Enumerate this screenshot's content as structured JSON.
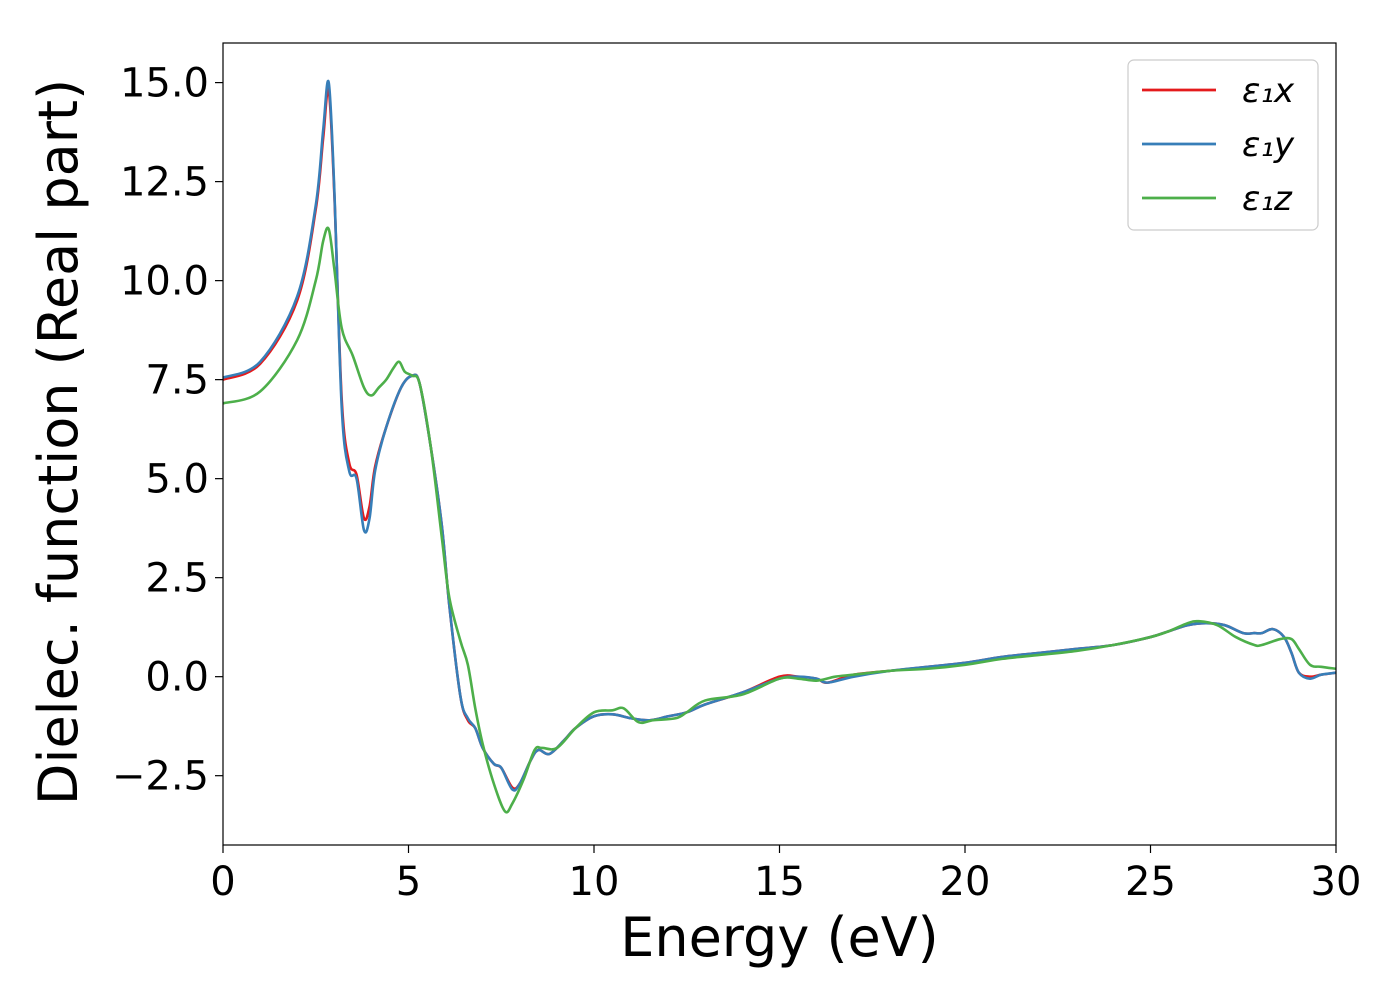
{
  "chart_data": {
    "type": "line",
    "title": "",
    "xlabel": "Energy (eV)",
    "ylabel": "Dielec. function (Real part)",
    "xlim": [
      0,
      30
    ],
    "ylim": [
      -4.25,
      16
    ],
    "xticks": [
      0,
      5,
      10,
      15,
      20,
      25,
      30
    ],
    "xtick_labels": [
      "0",
      "5",
      "10",
      "15",
      "20",
      "25",
      "30"
    ],
    "yticks": [
      -2.5,
      0.0,
      2.5,
      5.0,
      7.5,
      10.0,
      12.5,
      15.0
    ],
    "ytick_labels": [
      "−2.5",
      "0.0",
      "2.5",
      "5.0",
      "7.5",
      "10.0",
      "12.5",
      "15.0"
    ],
    "grid": false,
    "legend_position": "top-right",
    "series": [
      {
        "name": "ε₁x",
        "color": "#e41a1c",
        "x": [
          0,
          1,
          2,
          2.5,
          2.7,
          2.85,
          3.0,
          3.2,
          3.4,
          3.6,
          3.8,
          3.95,
          4.1,
          4.4,
          4.8,
          5.1,
          5.3,
          5.6,
          5.9,
          6.1,
          6.4,
          6.6,
          6.8,
          7.0,
          7.3,
          7.5,
          7.8,
          8.0,
          8.3,
          8.5,
          8.8,
          9.2,
          9.5,
          10.0,
          10.5,
          11.0,
          11.5,
          12.0,
          12.5,
          13.0,
          14.0,
          15.0,
          15.5,
          16.0,
          16.3,
          17.0,
          18.0,
          19.0,
          20.0,
          21.0,
          22.0,
          23.0,
          24.0,
          25.0,
          25.5,
          26.0,
          26.5,
          27.0,
          27.5,
          27.8,
          28.0,
          28.3,
          28.6,
          28.8,
          29.0,
          29.3,
          29.6,
          30.0
        ],
        "y": [
          7.5,
          7.9,
          9.5,
          11.8,
          13.6,
          14.8,
          12.2,
          7.0,
          5.4,
          5.1,
          4.0,
          4.3,
          5.3,
          6.3,
          7.3,
          7.6,
          7.4,
          5.8,
          3.8,
          1.8,
          -0.5,
          -1.1,
          -1.3,
          -1.8,
          -2.2,
          -2.3,
          -2.8,
          -2.7,
          -2.1,
          -1.85,
          -1.95,
          -1.6,
          -1.3,
          -1.0,
          -0.95,
          -1.05,
          -1.1,
          -1.0,
          -0.9,
          -0.7,
          -0.4,
          0.0,
          0.0,
          -0.05,
          -0.15,
          0.05,
          0.15,
          0.25,
          0.35,
          0.5,
          0.6,
          0.7,
          0.8,
          1.0,
          1.15,
          1.3,
          1.35,
          1.3,
          1.1,
          1.1,
          1.1,
          1.2,
          1.0,
          0.6,
          0.1,
          0.0,
          0.05,
          0.1
        ]
      },
      {
        "name": "ε₁y",
        "color": "#377eb8",
        "x": [
          0,
          1,
          2,
          2.5,
          2.7,
          2.85,
          3.0,
          3.2,
          3.4,
          3.6,
          3.8,
          3.95,
          4.1,
          4.4,
          4.8,
          5.1,
          5.3,
          5.6,
          5.9,
          6.1,
          6.4,
          6.6,
          6.8,
          7.0,
          7.3,
          7.5,
          7.8,
          8.0,
          8.3,
          8.5,
          8.8,
          9.2,
          9.5,
          10.0,
          10.5,
          11.0,
          11.5,
          12.0,
          12.5,
          13.0,
          14.0,
          15.0,
          15.5,
          16.0,
          16.3,
          17.0,
          18.0,
          19.0,
          20.0,
          21.0,
          22.0,
          23.0,
          24.0,
          25.0,
          25.5,
          26.0,
          26.5,
          27.0,
          27.5,
          27.8,
          28.0,
          28.3,
          28.6,
          28.8,
          29.0,
          29.3,
          29.6,
          30.0
        ],
        "y": [
          7.55,
          7.95,
          9.6,
          11.9,
          13.8,
          15.0,
          12.3,
          6.8,
          5.2,
          5.0,
          3.7,
          4.0,
          5.2,
          6.3,
          7.3,
          7.6,
          7.4,
          5.8,
          3.8,
          1.8,
          -0.5,
          -1.05,
          -1.3,
          -1.8,
          -2.2,
          -2.3,
          -2.85,
          -2.7,
          -2.1,
          -1.85,
          -1.95,
          -1.6,
          -1.3,
          -1.0,
          -0.95,
          -1.05,
          -1.1,
          -1.0,
          -0.9,
          -0.7,
          -0.4,
          -0.05,
          0.0,
          -0.05,
          -0.15,
          0.0,
          0.15,
          0.25,
          0.35,
          0.5,
          0.6,
          0.7,
          0.8,
          1.0,
          1.15,
          1.3,
          1.35,
          1.3,
          1.1,
          1.1,
          1.1,
          1.2,
          1.0,
          0.6,
          0.1,
          -0.05,
          0.05,
          0.1
        ]
      },
      {
        "name": "ε₁z",
        "color": "#4daf4a",
        "x": [
          0,
          1,
          2,
          2.5,
          2.7,
          2.85,
          3.0,
          3.2,
          3.5,
          3.8,
          4.0,
          4.2,
          4.4,
          4.6,
          4.75,
          4.9,
          5.1,
          5.3,
          5.6,
          5.9,
          6.1,
          6.4,
          6.6,
          6.8,
          7.0,
          7.3,
          7.6,
          7.8,
          8.1,
          8.4,
          8.6,
          9.0,
          9.5,
          10.0,
          10.5,
          10.8,
          11.2,
          11.6,
          12.2,
          12.5,
          13.0,
          14.0,
          15.0,
          15.5,
          16.0,
          16.5,
          17.0,
          18.0,
          19.0,
          20.0,
          21.0,
          22.0,
          23.0,
          24.0,
          25.0,
          25.5,
          26.0,
          26.3,
          26.8,
          27.3,
          27.8,
          28.0,
          28.5,
          28.8,
          29.0,
          29.3,
          29.6,
          30.0
        ],
        "y": [
          6.9,
          7.2,
          8.5,
          10.0,
          11.0,
          11.3,
          10.3,
          8.8,
          8.1,
          7.3,
          7.1,
          7.3,
          7.5,
          7.8,
          7.95,
          7.7,
          7.6,
          7.4,
          5.8,
          3.5,
          2.0,
          0.9,
          0.3,
          -0.8,
          -1.7,
          -2.7,
          -3.4,
          -3.2,
          -2.6,
          -1.85,
          -1.8,
          -1.8,
          -1.3,
          -0.9,
          -0.85,
          -0.8,
          -1.15,
          -1.1,
          -1.05,
          -0.9,
          -0.6,
          -0.45,
          -0.05,
          -0.05,
          -0.1,
          0.0,
          0.05,
          0.15,
          0.2,
          0.3,
          0.45,
          0.55,
          0.65,
          0.8,
          1.0,
          1.15,
          1.35,
          1.4,
          1.3,
          1.0,
          0.8,
          0.8,
          0.95,
          0.95,
          0.7,
          0.3,
          0.25,
          0.2
        ]
      }
    ]
  }
}
